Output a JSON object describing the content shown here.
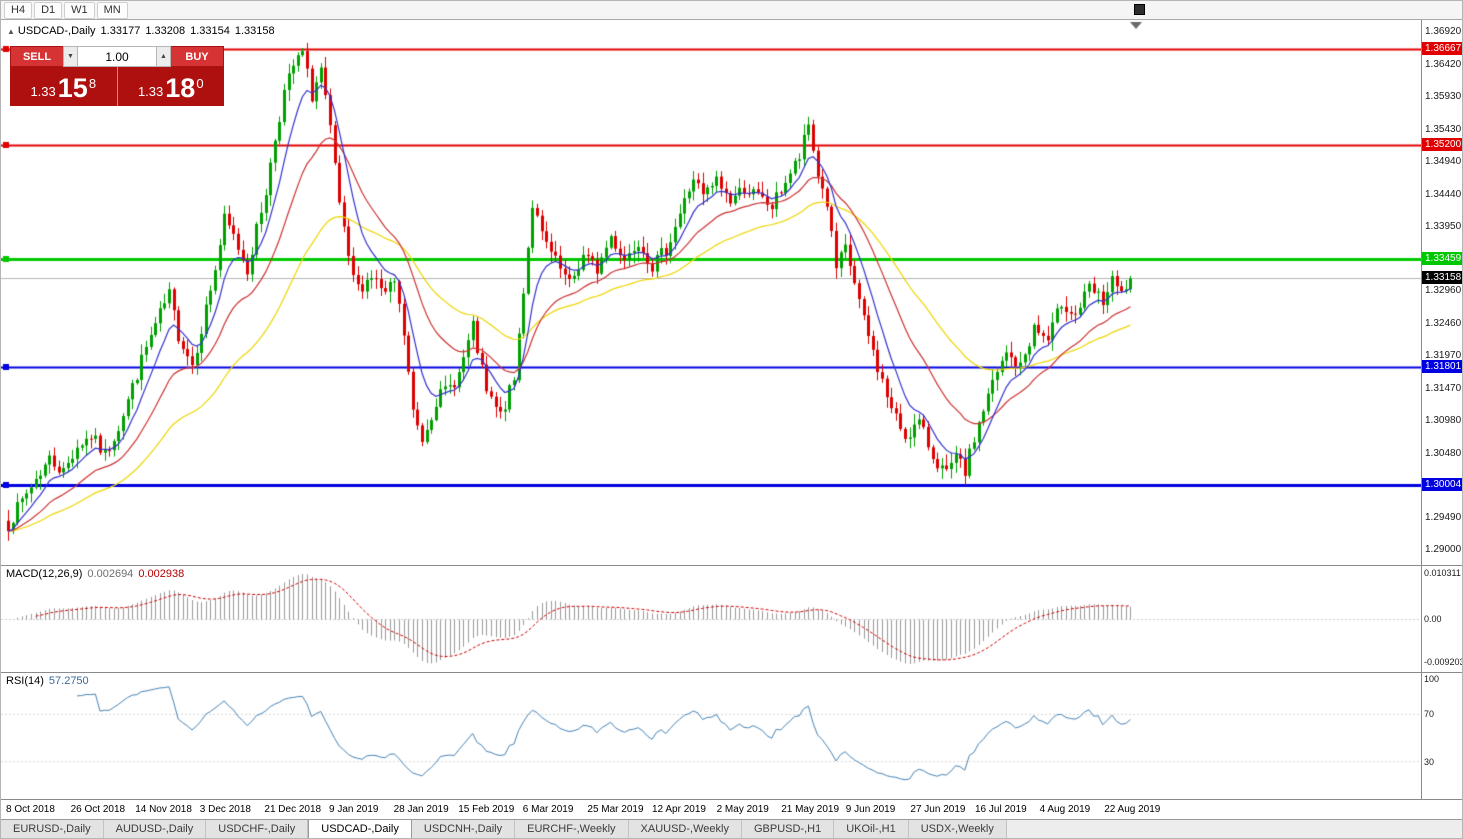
{
  "toolbar": {
    "timeframes": [
      "H4",
      "D1",
      "W1",
      "MN"
    ]
  },
  "title": {
    "arrow_icon": "▲",
    "symbol": "USDCAD-,Daily",
    "open": "1.33177",
    "high": "1.33208",
    "low": "1.33154",
    "close": "1.33158"
  },
  "trade_panel": {
    "sell_label": "SELL",
    "buy_label": "BUY",
    "volume": "1.00",
    "spin_down_icon": "▼",
    "spin_up_icon": "▲",
    "sell_price": {
      "prefix": "1.33",
      "pips": "15",
      "frac": "8"
    },
    "buy_price": {
      "prefix": "1.33",
      "pips": "18",
      "frac": "0"
    }
  },
  "chart_data": {
    "type": "candlestick",
    "symbol": "USDCAD",
    "timeframe": "Daily",
    "up_color": "#00A000",
    "down_color": "#DD0000",
    "current_price": 1.33158,
    "current_price_label": "1.33158",
    "current_price_line_color": "#b4b4b4",
    "levels": [
      {
        "price": 1.36667,
        "label": "1.36667",
        "color": "#E00000"
      },
      {
        "price": 1.352,
        "label": "1.35200",
        "color": "#E00000"
      },
      {
        "price": 1.33459,
        "label": "1.33459",
        "color": "#00C800"
      },
      {
        "price": 1.31801,
        "label": "1.31801",
        "color": "#0000E0"
      },
      {
        "price": 1.30004,
        "label": "1.30004",
        "color": "#0000E0"
      }
    ],
    "y_axis_labels": [
      "1.36920",
      "1.36420",
      "1.35930",
      "1.35430",
      "1.34940",
      "1.34440",
      "1.33950",
      "1.33450",
      "1.32960",
      "1.32460",
      "1.31970",
      "1.31470",
      "1.30980",
      "1.30480",
      "1.29990",
      "1.29490",
      "1.29000"
    ],
    "x_axis_labels": [
      "8 Oct 2018",
      "26 Oct 2018",
      "14 Nov 2018",
      "3 Dec 2018",
      "21 Dec 2018",
      "9 Jan 2019",
      "28 Jan 2019",
      "15 Feb 2019",
      "6 Mar 2019",
      "25 Mar 2019",
      "12 Apr 2019",
      "2 May 2019",
      "21 May 2019",
      "9 Jun 2019",
      "27 Jun 2019",
      "16 Jul 2019",
      "4 Aug 2019",
      "22 Aug 2019"
    ],
    "candle_count": 245,
    "moving_averages": [
      {
        "period": 8,
        "color": "#3333CC"
      },
      {
        "period": 21,
        "color": "#CC3333"
      },
      {
        "period": 45,
        "color": "#EDD500"
      }
    ],
    "price_path_anchors": [
      [
        0,
        1.294
      ],
      [
        3,
        1.2975
      ],
      [
        6,
        1.301
      ],
      [
        9,
        1.304
      ],
      [
        12,
        1.302
      ],
      [
        15,
        1.306
      ],
      [
        18,
        1.3075
      ],
      [
        21,
        1.3045
      ],
      [
        24,
        1.309
      ],
      [
        27,
        1.315
      ],
      [
        30,
        1.321
      ],
      [
        33,
        1.326
      ],
      [
        35,
        1.329
      ],
      [
        37,
        1.323
      ],
      [
        40,
        1.3185
      ],
      [
        42,
        1.324
      ],
      [
        45,
        1.333
      ],
      [
        47,
        1.3405
      ],
      [
        49,
        1.338
      ],
      [
        52,
        1.333
      ],
      [
        54,
        1.339
      ],
      [
        56,
        1.345
      ],
      [
        58,
        1.353
      ],
      [
        60,
        1.36
      ],
      [
        62,
        1.364
      ],
      [
        64,
        1.366
      ],
      [
        66,
        1.3595
      ],
      [
        68,
        1.3635
      ],
      [
        70,
        1.354
      ],
      [
        72,
        1.343
      ],
      [
        74,
        1.334
      ],
      [
        76,
        1.33
      ],
      [
        79,
        1.332
      ],
      [
        82,
        1.329
      ],
      [
        84,
        1.331
      ],
      [
        86,
        1.323
      ],
      [
        88,
        1.311
      ],
      [
        90,
        1.307
      ],
      [
        93,
        1.313
      ],
      [
        96,
        1.315
      ],
      [
        98,
        1.317
      ],
      [
        101,
        1.324
      ],
      [
        104,
        1.314
      ],
      [
        107,
        1.3105
      ],
      [
        110,
        1.316
      ],
      [
        112,
        1.33
      ],
      [
        114,
        1.343
      ],
      [
        116,
        1.338
      ],
      [
        119,
        1.334
      ],
      [
        122,
        1.3305
      ],
      [
        125,
        1.335
      ],
      [
        128,
        1.333
      ],
      [
        131,
        1.338
      ],
      [
        134,
        1.3345
      ],
      [
        137,
        1.3375
      ],
      [
        140,
        1.3335
      ],
      [
        143,
        1.336
      ],
      [
        146,
        1.3415
      ],
      [
        149,
        1.347
      ],
      [
        151,
        1.344
      ],
      [
        154,
        1.3465
      ],
      [
        157,
        1.3435
      ],
      [
        160,
        1.3455
      ],
      [
        163,
        1.344
      ],
      [
        166,
        1.3425
      ],
      [
        169,
        1.3465
      ],
      [
        172,
        1.35
      ],
      [
        174,
        1.355
      ],
      [
        176,
        1.3475
      ],
      [
        178,
        1.343
      ],
      [
        180,
        1.333
      ],
      [
        182,
        1.336
      ],
      [
        184,
        1.331
      ],
      [
        186,
        1.325
      ],
      [
        189,
        1.318
      ],
      [
        192,
        1.3115
      ],
      [
        195,
        1.3075
      ],
      [
        198,
        1.3095
      ],
      [
        201,
        1.3045
      ],
      [
        204,
        1.3015
      ],
      [
        206,
        1.304
      ],
      [
        208,
        1.302
      ],
      [
        211,
        1.3095
      ],
      [
        214,
        1.3155
      ],
      [
        217,
        1.32
      ],
      [
        220,
        1.318
      ],
      [
        223,
        1.324
      ],
      [
        226,
        1.322
      ],
      [
        229,
        1.328
      ],
      [
        232,
        1.326
      ],
      [
        235,
        1.33
      ],
      [
        238,
        1.328
      ],
      [
        240,
        1.331
      ],
      [
        242,
        1.329
      ],
      [
        244,
        1.33158
      ]
    ]
  },
  "macd_panel": {
    "name": "MACD(12,26,9)",
    "value": "0.002694",
    "signal": "0.002938",
    "axis_labels": [
      "0.010311",
      "0.00",
      "-0.0092030"
    ],
    "histogram_color": "#9a9a9a",
    "signal_color": "#CC0000"
  },
  "rsi_panel": {
    "name": "RSI(14)",
    "value": "57.2750",
    "axis_labels": [
      "100",
      "70",
      "30"
    ],
    "line_color": "#4682B4"
  },
  "tabs": [
    {
      "label": "EURUSD-,Daily",
      "active": false
    },
    {
      "label": "AUDUSD-,Daily",
      "active": false
    },
    {
      "label": "USDCHF-,Daily",
      "active": false
    },
    {
      "label": "USDCAD-,Daily",
      "active": true
    },
    {
      "label": "USDCNH-,Daily",
      "active": false
    },
    {
      "label": "EURCHF-,Weekly",
      "active": false
    },
    {
      "label": "XAUUSD-,Weekly",
      "active": false
    },
    {
      "label": "GBPUSD-,H1",
      "active": false
    },
    {
      "label": "UKOil-,H1",
      "active": false
    },
    {
      "label": "USDX-,Weekly",
      "active": false
    }
  ]
}
